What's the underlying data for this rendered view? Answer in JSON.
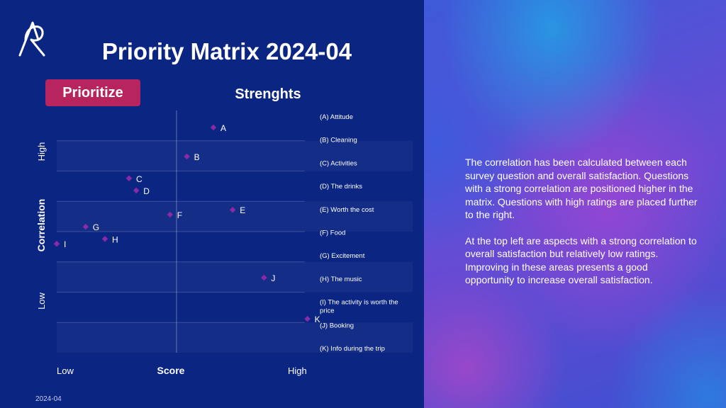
{
  "title": "Priority Matrix 2024-04",
  "quadrant_labels": {
    "top_left": "Prioritize",
    "top_right": "Strenghts"
  },
  "description": [
    "The correlation has been calculated between each survey question and overall satisfaction. Questions with a strong correlation are positioned higher in the matrix. Questions with high ratings are placed further to the right.",
    "At the top left are aspects with a strong correlation to overall satisfaction but relatively low ratings. Improving in these areas presents a good opportunity to increase overall satisfaction."
  ],
  "footer_date": "2024-04",
  "colors": {
    "accent": "#b8245d",
    "marker": "#8a2aa8",
    "background": "#0b2582"
  },
  "chart_data": {
    "type": "scatter",
    "title": "Priority Matrix 2024-04",
    "xlabel": "Score",
    "ylabel": "Correlation",
    "x_ticks": [
      "Low",
      "High"
    ],
    "y_ticks": [
      "Low",
      "High"
    ],
    "xlim": [
      0,
      100
    ],
    "ylim": [
      0,
      100
    ],
    "grid": true,
    "points": [
      {
        "label": "A",
        "x": 65,
        "y": 93
      },
      {
        "label": "B",
        "x": 54,
        "y": 81
      },
      {
        "label": "C",
        "x": 30,
        "y": 72
      },
      {
        "label": "D",
        "x": 33,
        "y": 67
      },
      {
        "label": "E",
        "x": 73,
        "y": 59
      },
      {
        "label": "F",
        "x": 47,
        "y": 57
      },
      {
        "label": "G",
        "x": 12,
        "y": 52
      },
      {
        "label": "H",
        "x": 20,
        "y": 47
      },
      {
        "label": "I",
        "x": 0,
        "y": 45
      },
      {
        "label": "J",
        "x": 86,
        "y": 31
      },
      {
        "label": "K",
        "x": 104,
        "y": 14
      }
    ],
    "legend": [
      "(A) Attitude",
      "(B) Cleaning",
      "(C) Activities",
      "(D) The drinks",
      "(E) Worth the cost",
      "(F) Food",
      "(G) Excitement",
      "(H) The music",
      "(I) The activity is worth the price",
      "(J) Booking",
      "(K) Info during the trip"
    ]
  }
}
